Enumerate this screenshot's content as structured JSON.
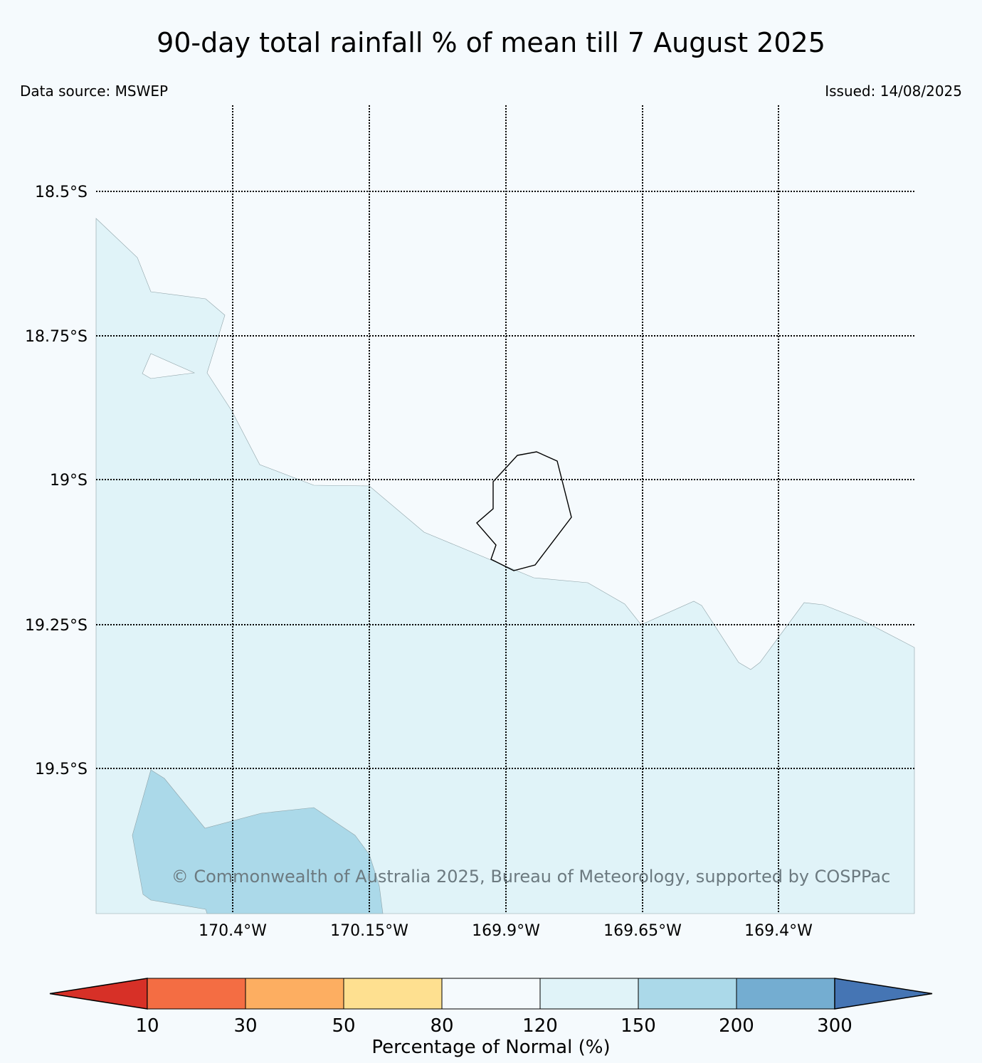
{
  "title": "90-day total rainfall % of mean till 7 August 2025",
  "data_source": "Data source: MSWEP",
  "issued": "Issued: 14/08/2025",
  "copyright": "© Commonwealth of Australia 2025, Bureau of Meteorology, supported by COSPPac",
  "map": {
    "latitude_labels": [
      "18.5°S",
      "18.75°S",
      "19°S",
      "19.25°S",
      "19.5°S"
    ],
    "longitude_labels": [
      "170.4°W",
      "170.15°W",
      "169.9°W",
      "169.65°W",
      "169.4°W"
    ],
    "region_categories": [
      "120-150",
      "150-200"
    ]
  },
  "colorbar": {
    "title": "Percentage of Normal (%)",
    "ticks": [
      "10",
      "30",
      "50",
      "80",
      "120",
      "150",
      "200",
      "300"
    ],
    "colors": [
      "#d73027",
      "#f46d43",
      "#fdae61",
      "#fee090",
      "#f5fafd",
      "#e0f3f8",
      "#abd9e9",
      "#74add1",
      "#4575b4"
    ],
    "extend": "both"
  }
}
